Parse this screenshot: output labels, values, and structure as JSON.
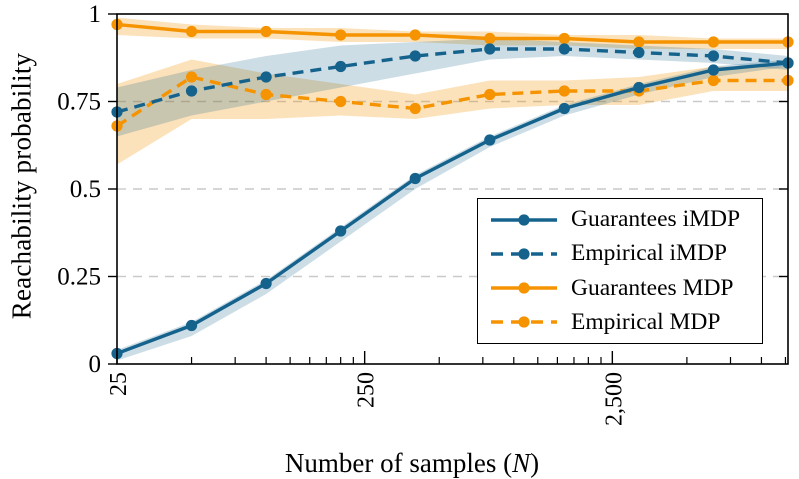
{
  "figure": {
    "ylabel": "Reachability probability",
    "xlabel_prefix": "Number of samples (",
    "xlabel_var": "N",
    "xlabel_suffix": ")"
  },
  "colors": {
    "blue": "#15638d",
    "orange": "#f59300",
    "blue_band": "rgba(21,99,141,0.22)",
    "orange_band": "rgba(245,147,0,0.27)",
    "grid": "#c9c9c9",
    "axis": "#000000"
  },
  "chart_data": {
    "type": "line",
    "title": "",
    "xlabel": "Number of samples (N)",
    "ylabel": "Reachability probability",
    "x_axis": {
      "scale": "log",
      "range": [
        25,
        12800
      ],
      "major_ticks": [
        25,
        250,
        2500
      ],
      "tick_labels": [
        "25",
        "250",
        "2,500"
      ],
      "minor_ticks": [
        50,
        75,
        100,
        125,
        150,
        175,
        200,
        225,
        500,
        750,
        1000,
        1250,
        1500,
        1750,
        2000,
        2250,
        5000,
        7500,
        10000,
        12500
      ],
      "tick_label_rotation_deg": -90
    },
    "y_axis": {
      "range": [
        0,
        1
      ],
      "major_ticks": [
        0,
        0.25,
        0.5,
        0.75,
        1
      ],
      "tick_labels": [
        "0",
        "0.25",
        "0.5",
        "0.75",
        "1"
      ],
      "gridlines": [
        0.25,
        0.5,
        0.75
      ],
      "grid_style": "dashed"
    },
    "x": [
      25,
      50,
      100,
      200,
      400,
      800,
      1600,
      3200,
      6400,
      12800
    ],
    "series": [
      {
        "name": "Guarantees MDP",
        "key": "guarantees-mdp",
        "style": "solid",
        "color": "#f59300",
        "band_color": "rgba(245,147,0,0.27)",
        "marker": "circle",
        "values": [
          0.97,
          0.95,
          0.95,
          0.94,
          0.94,
          0.93,
          0.93,
          0.92,
          0.92,
          0.92
        ],
        "band_lower": [
          0.94,
          0.93,
          0.93,
          0.92,
          0.92,
          0.91,
          0.91,
          0.9,
          0.9,
          0.9
        ],
        "band_upper": [
          0.99,
          0.97,
          0.96,
          0.96,
          0.95,
          0.95,
          0.94,
          0.94,
          0.93,
          0.93
        ]
      },
      {
        "name": "Empirical MDP",
        "key": "empirical-mdp",
        "style": "dashed",
        "color": "#f59300",
        "band_color": "rgba(245,147,0,0.27)",
        "marker": "circle",
        "values": [
          0.68,
          0.82,
          0.77,
          0.75,
          0.73,
          0.77,
          0.78,
          0.78,
          0.81,
          0.81
        ],
        "band_lower": [
          0.57,
          0.7,
          0.7,
          0.71,
          0.7,
          0.73,
          0.74,
          0.74,
          0.78,
          0.78
        ],
        "band_upper": [
          0.8,
          0.87,
          0.83,
          0.8,
          0.77,
          0.81,
          0.81,
          0.82,
          0.85,
          0.85
        ]
      },
      {
        "name": "Empirical iMDP",
        "key": "empirical-imdp",
        "style": "dashed",
        "color": "#15638d",
        "band_color": "rgba(21,99,141,0.22)",
        "marker": "circle",
        "values": [
          0.72,
          0.78,
          0.82,
          0.85,
          0.88,
          0.9,
          0.9,
          0.89,
          0.88,
          0.86
        ],
        "band_lower": [
          0.65,
          0.71,
          0.75,
          0.79,
          0.83,
          0.87,
          0.88,
          0.87,
          0.86,
          0.84
        ],
        "band_upper": [
          0.79,
          0.84,
          0.88,
          0.91,
          0.92,
          0.93,
          0.92,
          0.91,
          0.9,
          0.88
        ]
      },
      {
        "name": "Guarantees iMDP",
        "key": "guarantees-imdp",
        "style": "solid",
        "color": "#15638d",
        "band_color": "rgba(21,99,141,0.22)",
        "marker": "circle",
        "values": [
          0.03,
          0.11,
          0.23,
          0.38,
          0.53,
          0.64,
          0.73,
          0.79,
          0.84,
          0.86
        ],
        "band_lower": [
          0.01,
          0.08,
          0.2,
          0.35,
          0.5,
          0.62,
          0.71,
          0.77,
          0.82,
          0.85
        ],
        "band_upper": [
          0.04,
          0.12,
          0.24,
          0.39,
          0.54,
          0.65,
          0.74,
          0.8,
          0.85,
          0.87
        ]
      }
    ],
    "legend": {
      "position": "inside lower right",
      "entries": [
        {
          "label": "Guarantees iMDP",
          "key": "guarantees-imdp",
          "style": "solid",
          "color": "#15638d"
        },
        {
          "label": "Empirical iMDP",
          "key": "empirical-imdp",
          "style": "dashed",
          "color": "#15638d"
        },
        {
          "label": "Guarantees MDP",
          "key": "guarantees-mdp",
          "style": "solid",
          "color": "#f59300"
        },
        {
          "label": "Empirical MDP",
          "key": "empirical-mdp",
          "style": "dashed",
          "color": "#f59300"
        }
      ]
    }
  }
}
